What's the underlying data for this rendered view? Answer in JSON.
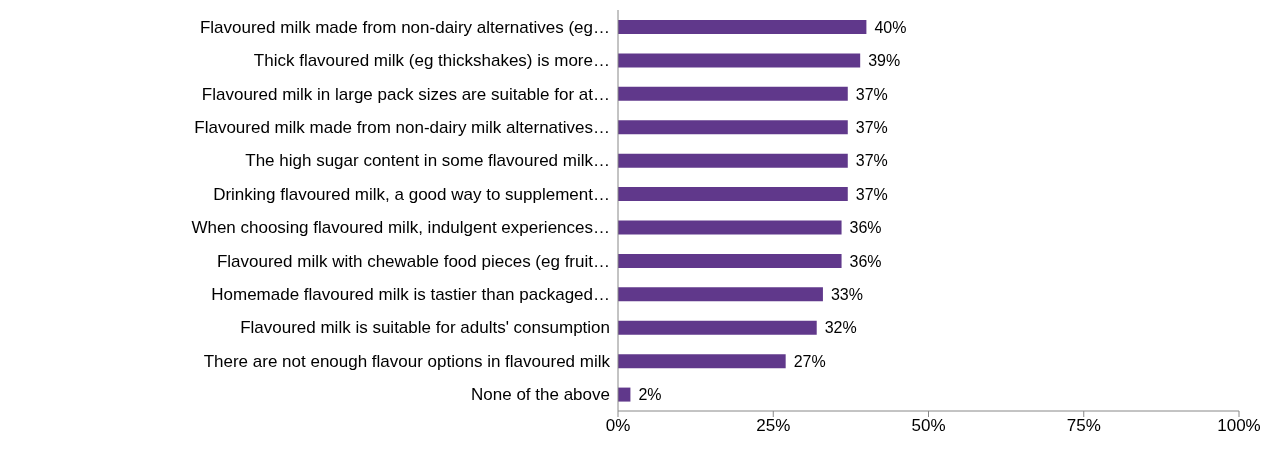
{
  "chart_data": {
    "type": "bar",
    "orientation": "horizontal",
    "categories": [
      "Flavoured milk made from non-dairy alternatives (eg…",
      "Thick flavoured milk (eg thickshakes) is more…",
      "Flavoured milk in large pack sizes are suitable for at…",
      "Flavoured milk made from non-dairy milk alternatives…",
      "The high sugar content in some flavoured milk…",
      "Drinking flavoured milk, a good way to supplement…",
      "When choosing flavoured milk, indulgent experiences…",
      "Flavoured milk with chewable food pieces (eg fruit…",
      "Homemade flavoured milk is tastier than packaged…",
      "Flavoured milk is suitable for adults' consumption",
      "There are not enough flavour options in flavoured milk",
      "None of the above"
    ],
    "values": [
      40,
      39,
      37,
      37,
      37,
      37,
      36,
      36,
      33,
      32,
      27,
      2
    ],
    "value_labels": [
      "40%",
      "39%",
      "37%",
      "37%",
      "37%",
      "37%",
      "36%",
      "36%",
      "33%",
      "32%",
      "27%",
      "2%"
    ],
    "color": "#60388b",
    "xlim": [
      0,
      100
    ],
    "xticks": [
      {
        "value": 0,
        "label": "0%"
      },
      {
        "value": 25,
        "label": "25%"
      },
      {
        "value": 50,
        "label": "50%"
      },
      {
        "value": 75,
        "label": "75%"
      },
      {
        "value": 100,
        "label": "100%"
      }
    ],
    "grid": false,
    "legend": false
  }
}
